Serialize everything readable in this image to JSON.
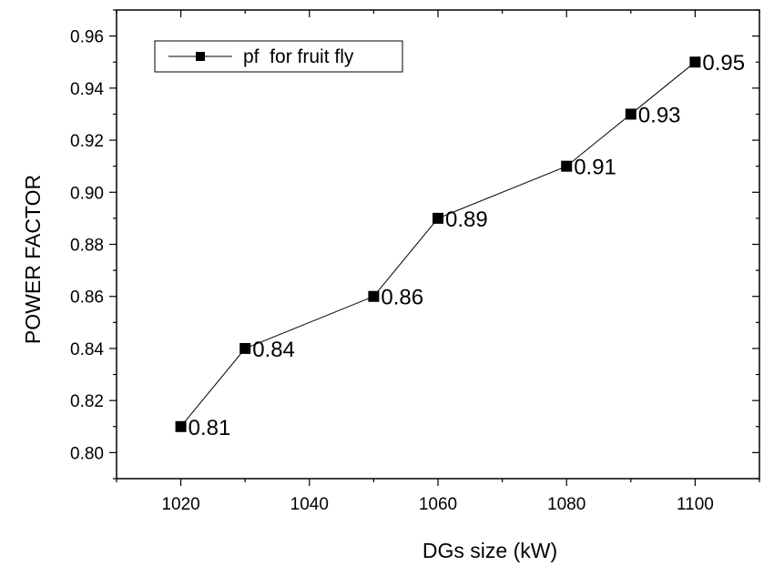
{
  "chart_data": {
    "type": "line",
    "title": "",
    "xlabel": "DGs size (kW)",
    "ylabel": "POWER FACTOR",
    "xlim": [
      1010,
      1110
    ],
    "ylim": [
      0.79,
      0.97
    ],
    "x_ticks": [
      1020,
      1040,
      1060,
      1080,
      1100
    ],
    "x_tick_labels": [
      "1020",
      "1040",
      "1060",
      "1080",
      "1100"
    ],
    "y_ticks": [
      0.8,
      0.82,
      0.84,
      0.86,
      0.88,
      0.9,
      0.92,
      0.94,
      0.96
    ],
    "y_tick_labels": [
      "0.80",
      "0.82",
      "0.84",
      "0.86",
      "0.88",
      "0.90",
      "0.92",
      "0.94",
      "0.96"
    ],
    "grid": false,
    "legend_position": "top-left",
    "series": [
      {
        "name": "pf  for fruit fly",
        "marker": "square",
        "color": "#000000",
        "x": [
          1020,
          1030,
          1050,
          1060,
          1080,
          1090,
          1100
        ],
        "y": [
          0.81,
          0.84,
          0.86,
          0.89,
          0.91,
          0.93,
          0.95
        ],
        "data_labels": [
          "0.81",
          "0.84",
          "0.86",
          "0.89",
          "0.91",
          "0.93",
          "0.95"
        ]
      }
    ]
  }
}
